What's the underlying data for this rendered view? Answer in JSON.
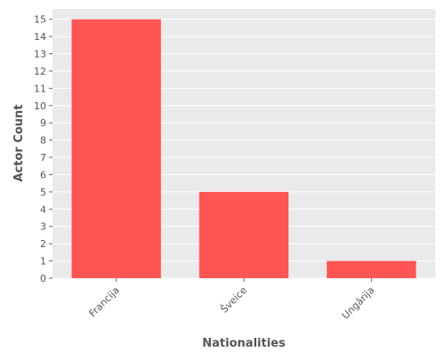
{
  "chart_data": {
    "type": "bar",
    "categories": [
      "Francija",
      "Šveice",
      "Ungārija"
    ],
    "values": [
      15,
      5,
      1
    ],
    "title": "",
    "xlabel": "Nationalities",
    "ylabel": "Actor Count",
    "ylim": [
      0,
      15.6
    ],
    "yticks": [
      0,
      1,
      2,
      3,
      4,
      5,
      6,
      7,
      8,
      9,
      10,
      11,
      12,
      13,
      14,
      15
    ],
    "grid": true,
    "legend": "none",
    "colors": {
      "bar": "#ff5555",
      "plot_background": "#eaeaea",
      "grid": "#ffffff",
      "text": "#555555"
    }
  }
}
